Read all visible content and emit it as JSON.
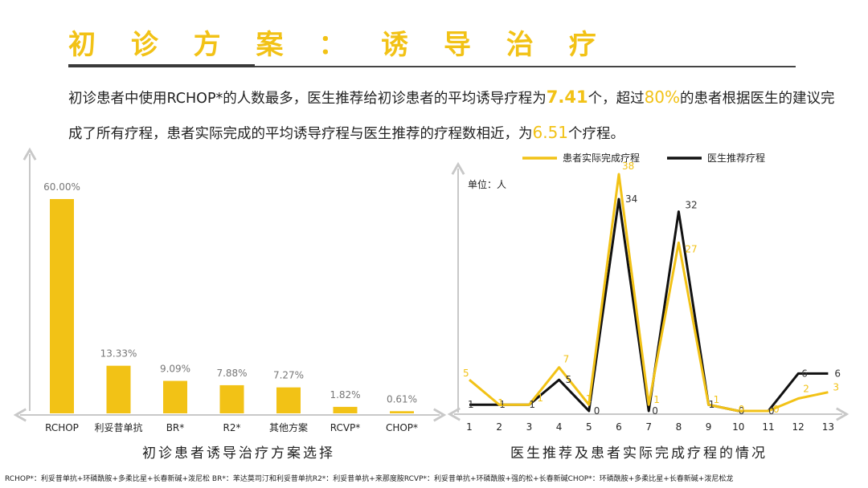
{
  "title": "初 诊 方 案 ： 诱 导 治 疗",
  "intro": {
    "part1": "初诊患者中使用RCHOP*的人数最多，医生推荐给初诊患者的平均诱导疗程为",
    "value1": "7.41",
    "part2": "个，超过",
    "value2": "80%",
    "part3": "的患者根据医生的建议完成了所有疗程，患者实际完成的平均诱导疗程与医生推荐的疗程数相近，为",
    "value3": "6.51",
    "part4": "个疗程。"
  },
  "colors": {
    "accent": "#F2C216",
    "dark": "#111111",
    "axis": "#cccccc"
  },
  "chart_data": [
    {
      "type": "bar",
      "title": "初诊患者诱导治疗方案选择",
      "categories": [
        "RCHOP",
        "利妥昔单抗",
        "BR*",
        "R2*",
        "其他方案",
        "RCVP*",
        "CHOP*"
      ],
      "values": [
        60.0,
        13.33,
        9.09,
        7.88,
        7.27,
        1.82,
        0.61
      ],
      "value_labels": [
        "60.00%",
        "13.33%",
        "9.09%",
        "7.88%",
        "7.27%",
        "1.82%",
        "0.61%"
      ],
      "ylim": [
        0,
        65
      ],
      "color": "#F2C216"
    },
    {
      "type": "line",
      "title": "医生推荐及患者实际完成疗程的情况",
      "unit_label": "单位：人",
      "x": [
        1,
        2,
        3,
        4,
        5,
        6,
        7,
        8,
        9,
        10,
        11,
        12,
        13
      ],
      "x_labels": [
        "1",
        "2",
        "3",
        "4",
        "5",
        "6",
        "7",
        "8",
        "9",
        "10",
        "11",
        "12",
        "13"
      ],
      "ylim": [
        0,
        40
      ],
      "legend": "top",
      "series": [
        {
          "name": "患者实际完成疗程",
          "color": "#F2C216",
          "values": [
            5,
            1,
            1,
            7,
            1,
            38,
            1,
            27,
            1,
            0,
            0,
            2,
            3
          ]
        },
        {
          "name": "医生推荐疗程",
          "color": "#111111",
          "values": [
            1,
            1,
            1,
            5,
            0,
            34,
            0,
            32,
            1,
            0,
            0,
            6,
            6
          ]
        }
      ]
    }
  ],
  "footnote": "RCHOP*：利妥昔单抗+环磷酰胺+多柔比星+长春新碱+泼尼松  BR*：苯达莫司汀和利妥昔单抗R2*：利妥昔单抗+来那度胺RCVP*：利妥昔单抗+环磷酰胺+强的松+长春新碱CHOP*：环磷酰胺+多柔比星+长春新碱+泼尼松龙"
}
